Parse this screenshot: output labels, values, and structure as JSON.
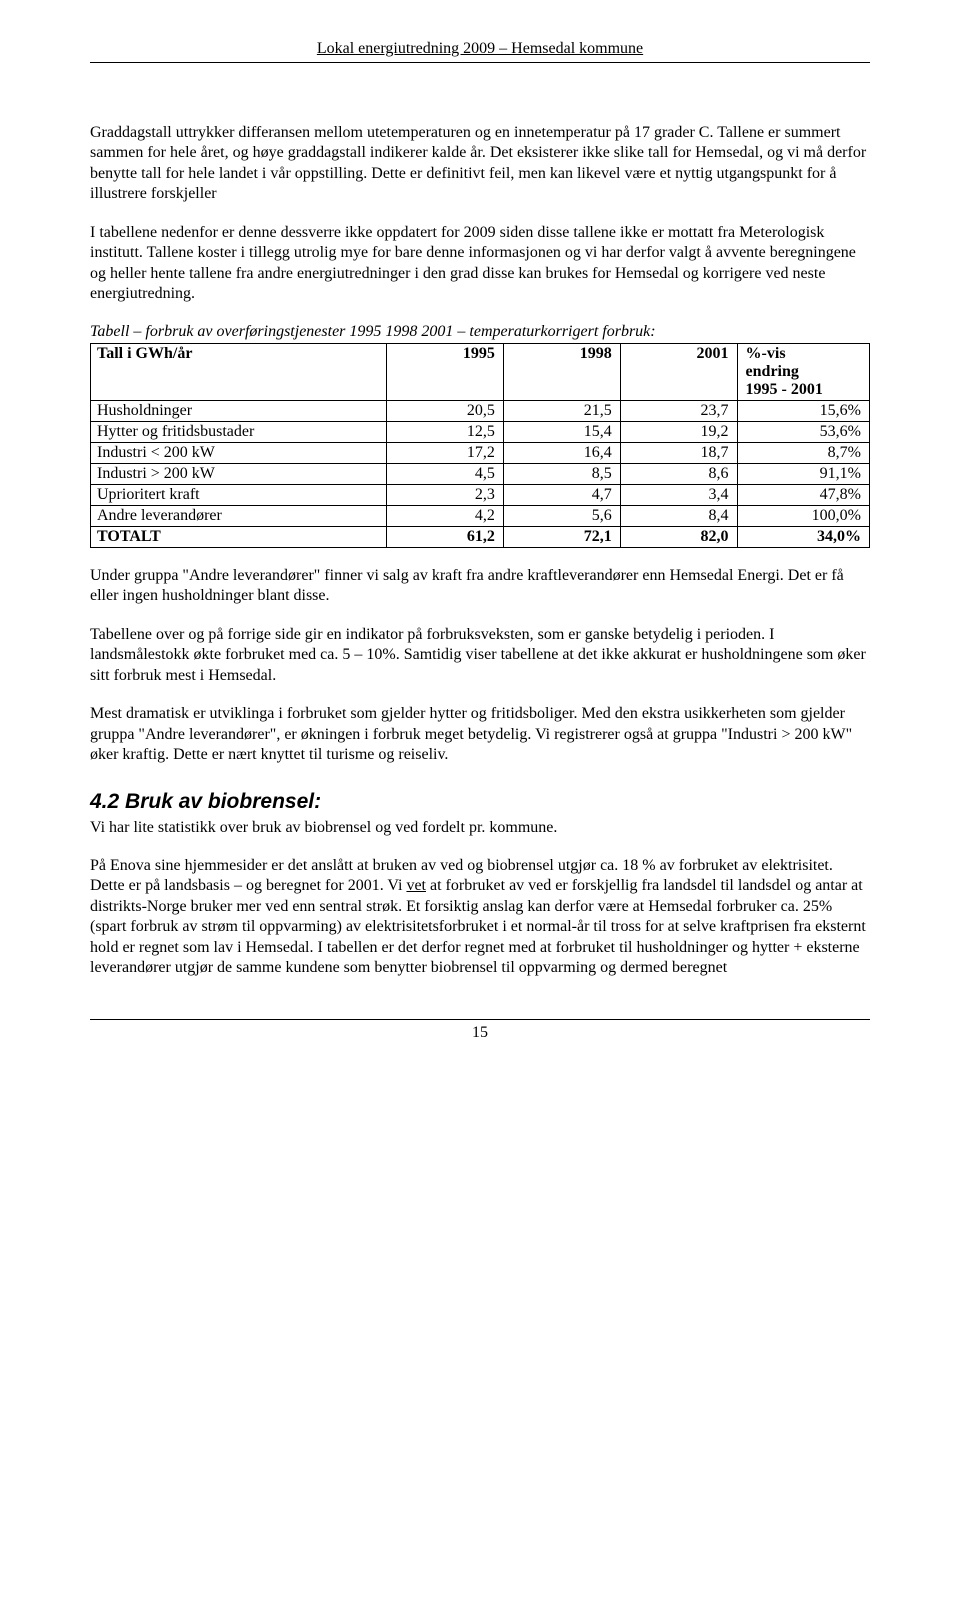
{
  "header": {
    "title": "Lokal energiutredning 2009 – Hemsedal kommune"
  },
  "paragraphs": {
    "p1": "Graddagstall uttrykker differansen mellom utetemperaturen og en innetemperatur på 17 grader C.  Tallene er summert sammen for hele året, og høye graddagstall indikerer kalde år.  Det eksisterer ikke slike tall for Hemsedal, og vi må derfor benytte tall for hele landet i vår oppstilling.  Dette er definitivt feil, men kan likevel være et nyttig utgangspunkt for å illustrere forskjeller",
    "p2": "I tabellene nedenfor er denne dessverre ikke oppdatert for 2009 siden disse tallene ikke er mottatt fra Meterologisk institutt. Tallene koster i tillegg utrolig mye for bare denne informasjonen og vi har derfor valgt å avvente beregningene og heller hente tallene fra andre energiutredninger i den grad disse kan brukes for Hemsedal og korrigere ved neste energiutredning.",
    "caption1": "Tabell – forbruk av overføringstjenester 1995  1998  2001 –  temperaturkorrigert forbruk:",
    "p3": "Under gruppa \"Andre leverandører\" finner vi salg av kraft fra andre kraftleverandører enn Hemsedal Energi.  Det er få eller ingen husholdninger blant disse.",
    "p4": "Tabellene over og på forrige side gir en indikator på forbruksveksten, som er ganske betydelig i perioden.  I landsmålestokk økte forbruket med ca. 5 – 10%.  Samtidig viser tabellene at det ikke akkurat er husholdningene som øker sitt forbruk mest i Hemsedal.",
    "p5": "Mest dramatisk er utviklinga i forbruket som gjelder hytter og fritidsboliger.  Med den ekstra usikkerheten som gjelder gruppa \"Andre leverandører\", er økningen i forbruk meget betydelig.  Vi registrerer også at gruppa \"Industri > 200 kW\" øker kraftig.  Dette er nært knyttet til turisme og reiseliv.",
    "p6a": "Vi har lite statistikk over bruk av biobrensel og ved fordelt pr. kommune.",
    "p6b_before": "På Enova sine hjemmesider er det anslått at bruken av ved og biobrensel utgjør ca. 18 % av forbruket av elektrisitet.  Dette er på landsbasis – og beregnet for 2001.  Vi ",
    "p6b_underlined": "vet",
    "p6b_after": " at forbruket av ved er forskjellig fra landsdel til landsdel og antar at distrikts-Norge bruker mer ved enn sentral strøk.  Et forsiktig anslag kan derfor være at Hemsedal forbruker ca. 25% (spart forbruk av strøm til oppvarming) av elektrisitetsforbruket i et normal-år til tross for at selve kraftprisen fra eksternt hold er regnet som lav i Hemsedal.  I tabellen er det derfor regnet med at forbruket til husholdninger og hytter + eksterne leverandører utgjør de samme kundene som benytter biobrensel til oppvarming og dermed beregnet"
  },
  "section": {
    "heading": "4.2 Bruk av biobrensel:"
  },
  "table": {
    "header": {
      "c0": "Tall i GWh/år",
      "c1": "1995",
      "c2": "1998",
      "c3": "2001",
      "c4a": "%-vis",
      "c4b": "endring",
      "c4c": "1995 - 2001"
    },
    "rows": [
      {
        "label": "Husholdninger",
        "y1995": "20,5",
        "y1998": "21,5",
        "y2001": "23,7",
        "pct": "15,6%"
      },
      {
        "label": "Hytter og fritidsbustader",
        "y1995": "12,5",
        "y1998": "15,4",
        "y2001": "19,2",
        "pct": "53,6%"
      },
      {
        "label": "Industri < 200 kW",
        "y1995": "17,2",
        "y1998": "16,4",
        "y2001": "18,7",
        "pct": "8,7%"
      },
      {
        "label": "Industri > 200 kW",
        "y1995": "4,5",
        "y1998": "8,5",
        "y2001": "8,6",
        "pct": "91,1%"
      },
      {
        "label": "Uprioritert kraft",
        "y1995": "2,3",
        "y1998": "4,7",
        "y2001": "3,4",
        "pct": "47,8%"
      },
      {
        "label": "Andre leverandører",
        "y1995": "4,2",
        "y1998": "5,6",
        "y2001": "8,4",
        "pct": "100,0%"
      }
    ],
    "total": {
      "label": "TOTALT",
      "y1995": "61,2",
      "y1998": "72,1",
      "y2001": "82,0",
      "pct": "34,0%"
    }
  },
  "footer": {
    "page": "15"
  }
}
